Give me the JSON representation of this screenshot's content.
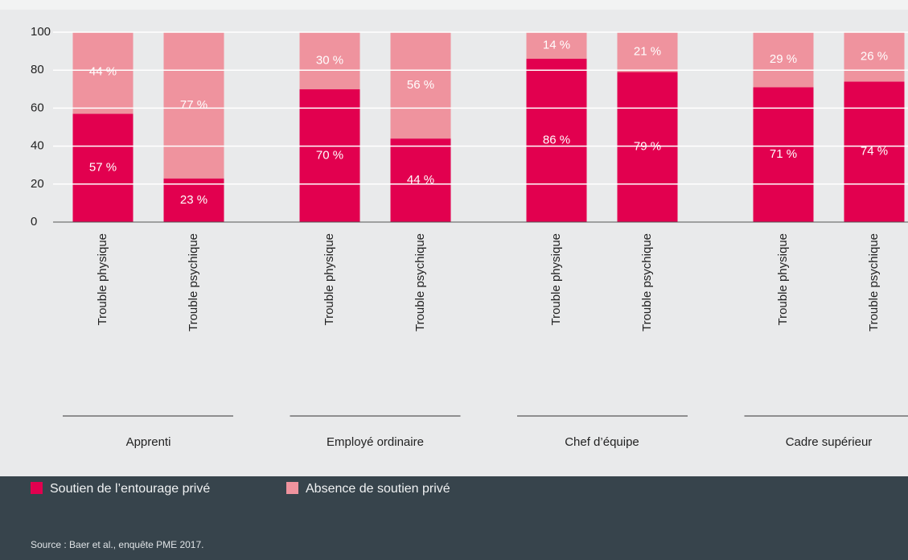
{
  "chart_data": {
    "type": "stacked_bar",
    "categories": [
      "Trouble physique",
      "Trouble psychique",
      "Trouble physique",
      "Trouble psychique",
      "Trouble physique",
      "Trouble psychique",
      "Trouble physique",
      "Trouble psychique"
    ],
    "groups": [
      "Apprenti",
      "Employé ordinaire",
      "Chef d’équipe",
      "Cadre supérieur"
    ],
    "series": [
      {
        "name": "Soutien de l’entourage privé",
        "color": "#e2004f",
        "values": [
          57,
          23,
          70,
          44,
          86,
          79,
          71,
          74
        ],
        "value_labels": [
          "57 %",
          "23 %",
          "70 %",
          "44 %",
          "86 %",
          "79 %",
          "71 %",
          "74 %"
        ]
      },
      {
        "name": "Absence de soutien privé",
        "color": "#ef939e",
        "values": [
          44,
          77,
          30,
          56,
          14,
          21,
          29,
          26
        ],
        "value_labels": [
          "44 %",
          "77 %",
          "30 %",
          "56 %",
          "14 %",
          "21 %",
          "29 %",
          "26 %"
        ]
      }
    ],
    "ylim": [
      0,
      100
    ],
    "yticks": [
      0,
      20,
      40,
      60,
      80,
      100
    ],
    "grid": true,
    "source": "Source : Baer et al., enquête PME 2017."
  }
}
